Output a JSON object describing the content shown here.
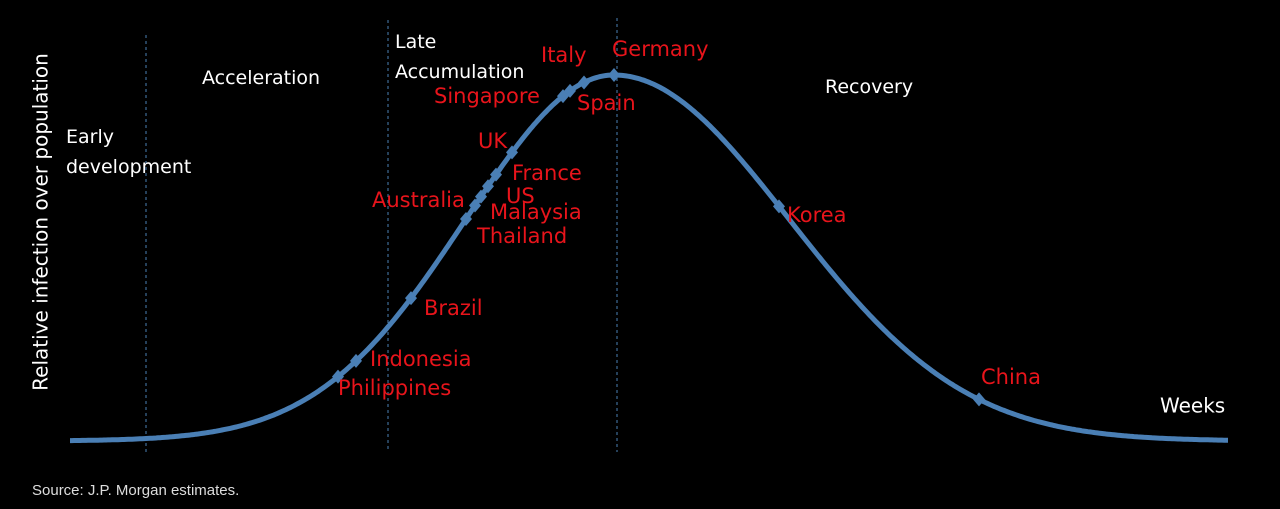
{
  "y_axis_label": "Relative infection over population",
  "x_axis_label": "Weeks",
  "phases": [
    "Early development",
    "Acceleration",
    "Late Accumulation",
    "Recovery"
  ],
  "countries": [
    "Philippines",
    "Indonesia",
    "Brazil",
    "Thailand",
    "Malaysia",
    "Australia",
    "US",
    "France",
    "UK",
    "Singapore",
    "Spain",
    "Italy",
    "Germany",
    "Korea",
    "China"
  ],
  "source": "Source: J.P. Morgan estimates."
}
